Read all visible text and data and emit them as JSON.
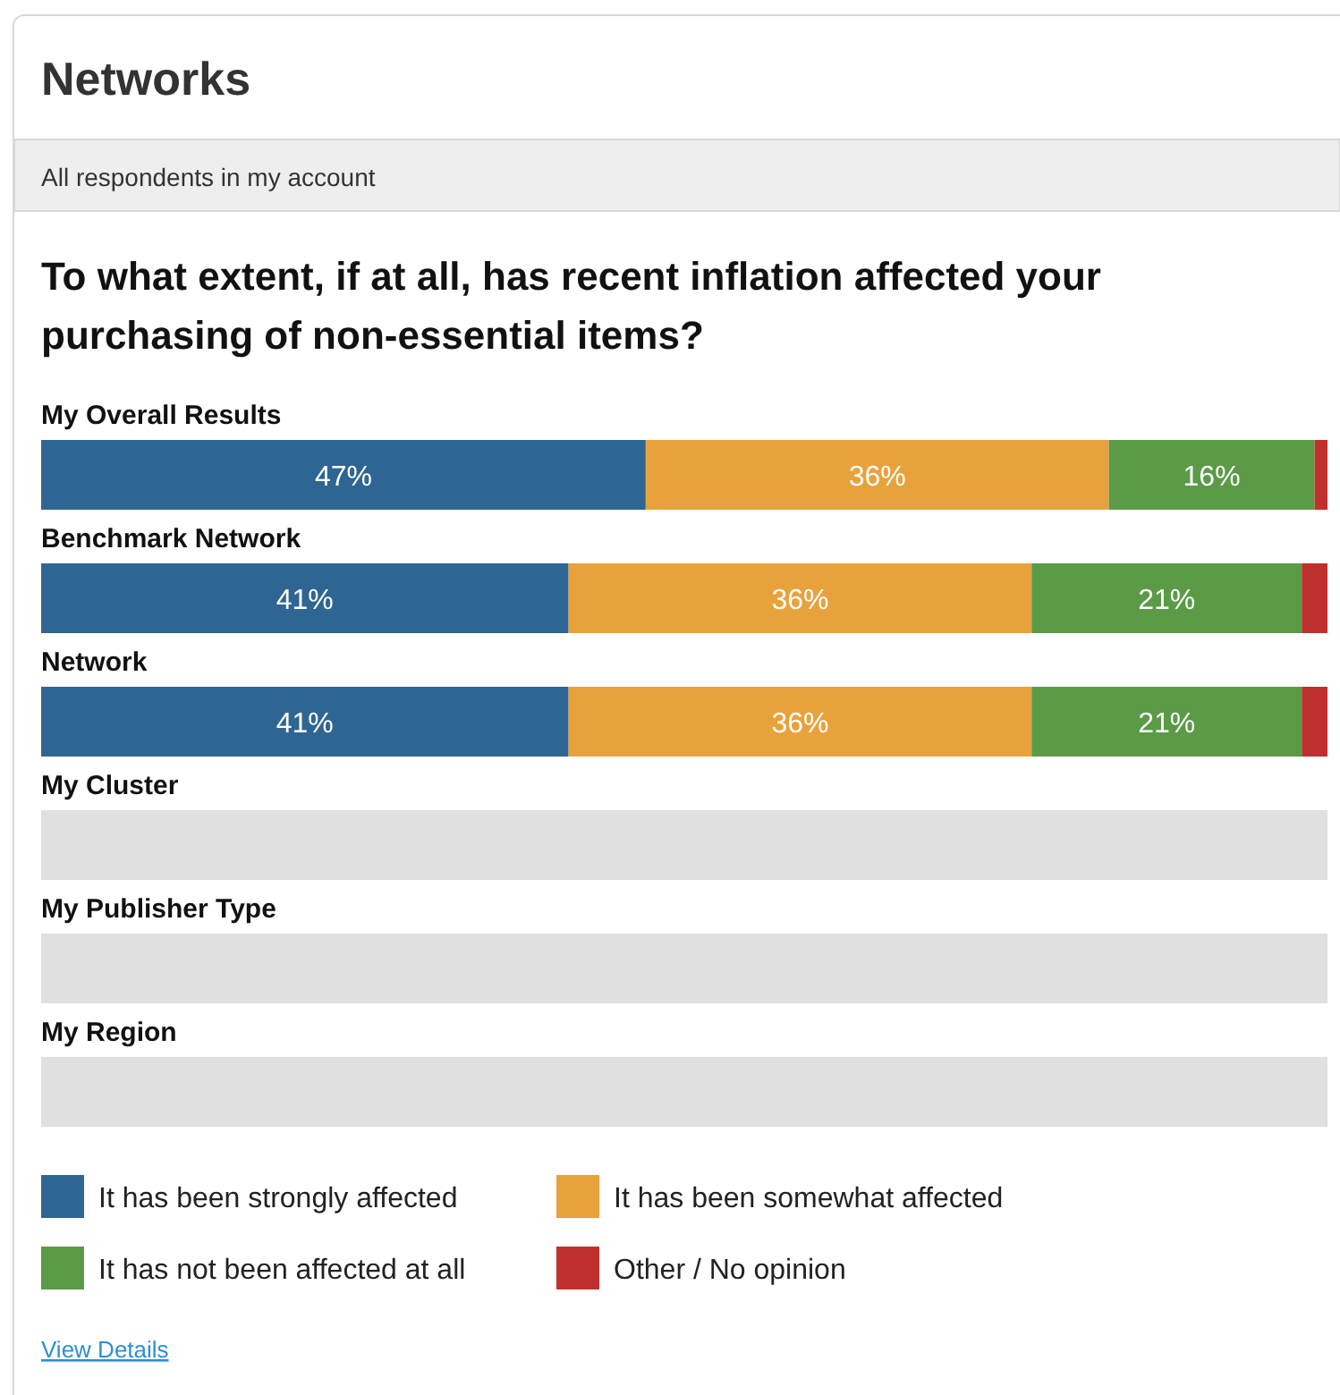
{
  "chart_data": {
    "type": "bar",
    "orientation": "horizontal",
    "stacked": true,
    "title": "Networks",
    "subtitle": "All respondents in my account",
    "annotations": [
      "To what extent, if at all, has recent inflation affected your purchasing of non-essential items?",
      "View Details"
    ],
    "categories": [
      "My Overall Results",
      "Benchmark Network",
      "Network",
      "My Cluster",
      "My Publisher Type",
      "My Region"
    ],
    "xlim": [
      0,
      100
    ],
    "tick_labels": false,
    "legend": "bottom",
    "series": [
      {
        "name": "It has been strongly affected",
        "color": "#2f6592",
        "values": [
          47,
          41,
          41,
          null,
          null,
          null
        ],
        "value_labels": [
          "47%",
          "41%",
          "41%",
          null,
          null,
          null
        ]
      },
      {
        "name": "It has been somewhat affected",
        "color": "#e8a23b",
        "values": [
          36,
          36,
          36,
          null,
          null,
          null
        ],
        "value_labels": [
          "36%",
          "36%",
          "36%",
          null,
          null,
          null
        ]
      },
      {
        "name": "It has not been affected at all",
        "color": "#5b9a47",
        "values": [
          16,
          21,
          21,
          null,
          null,
          null
        ],
        "value_labels": [
          "16%",
          "21%",
          "21%",
          null,
          null,
          null
        ]
      },
      {
        "name": "Other / No opinion",
        "color": "#c0302e",
        "values": [
          1,
          2,
          2,
          null,
          null,
          null
        ],
        "value_labels": [
          null,
          null,
          null,
          null,
          null,
          null
        ]
      },
      {
        "color": "#e0e0e0",
        "values": [
          null,
          null,
          null,
          100,
          100,
          100
        ]
      }
    ]
  }
}
